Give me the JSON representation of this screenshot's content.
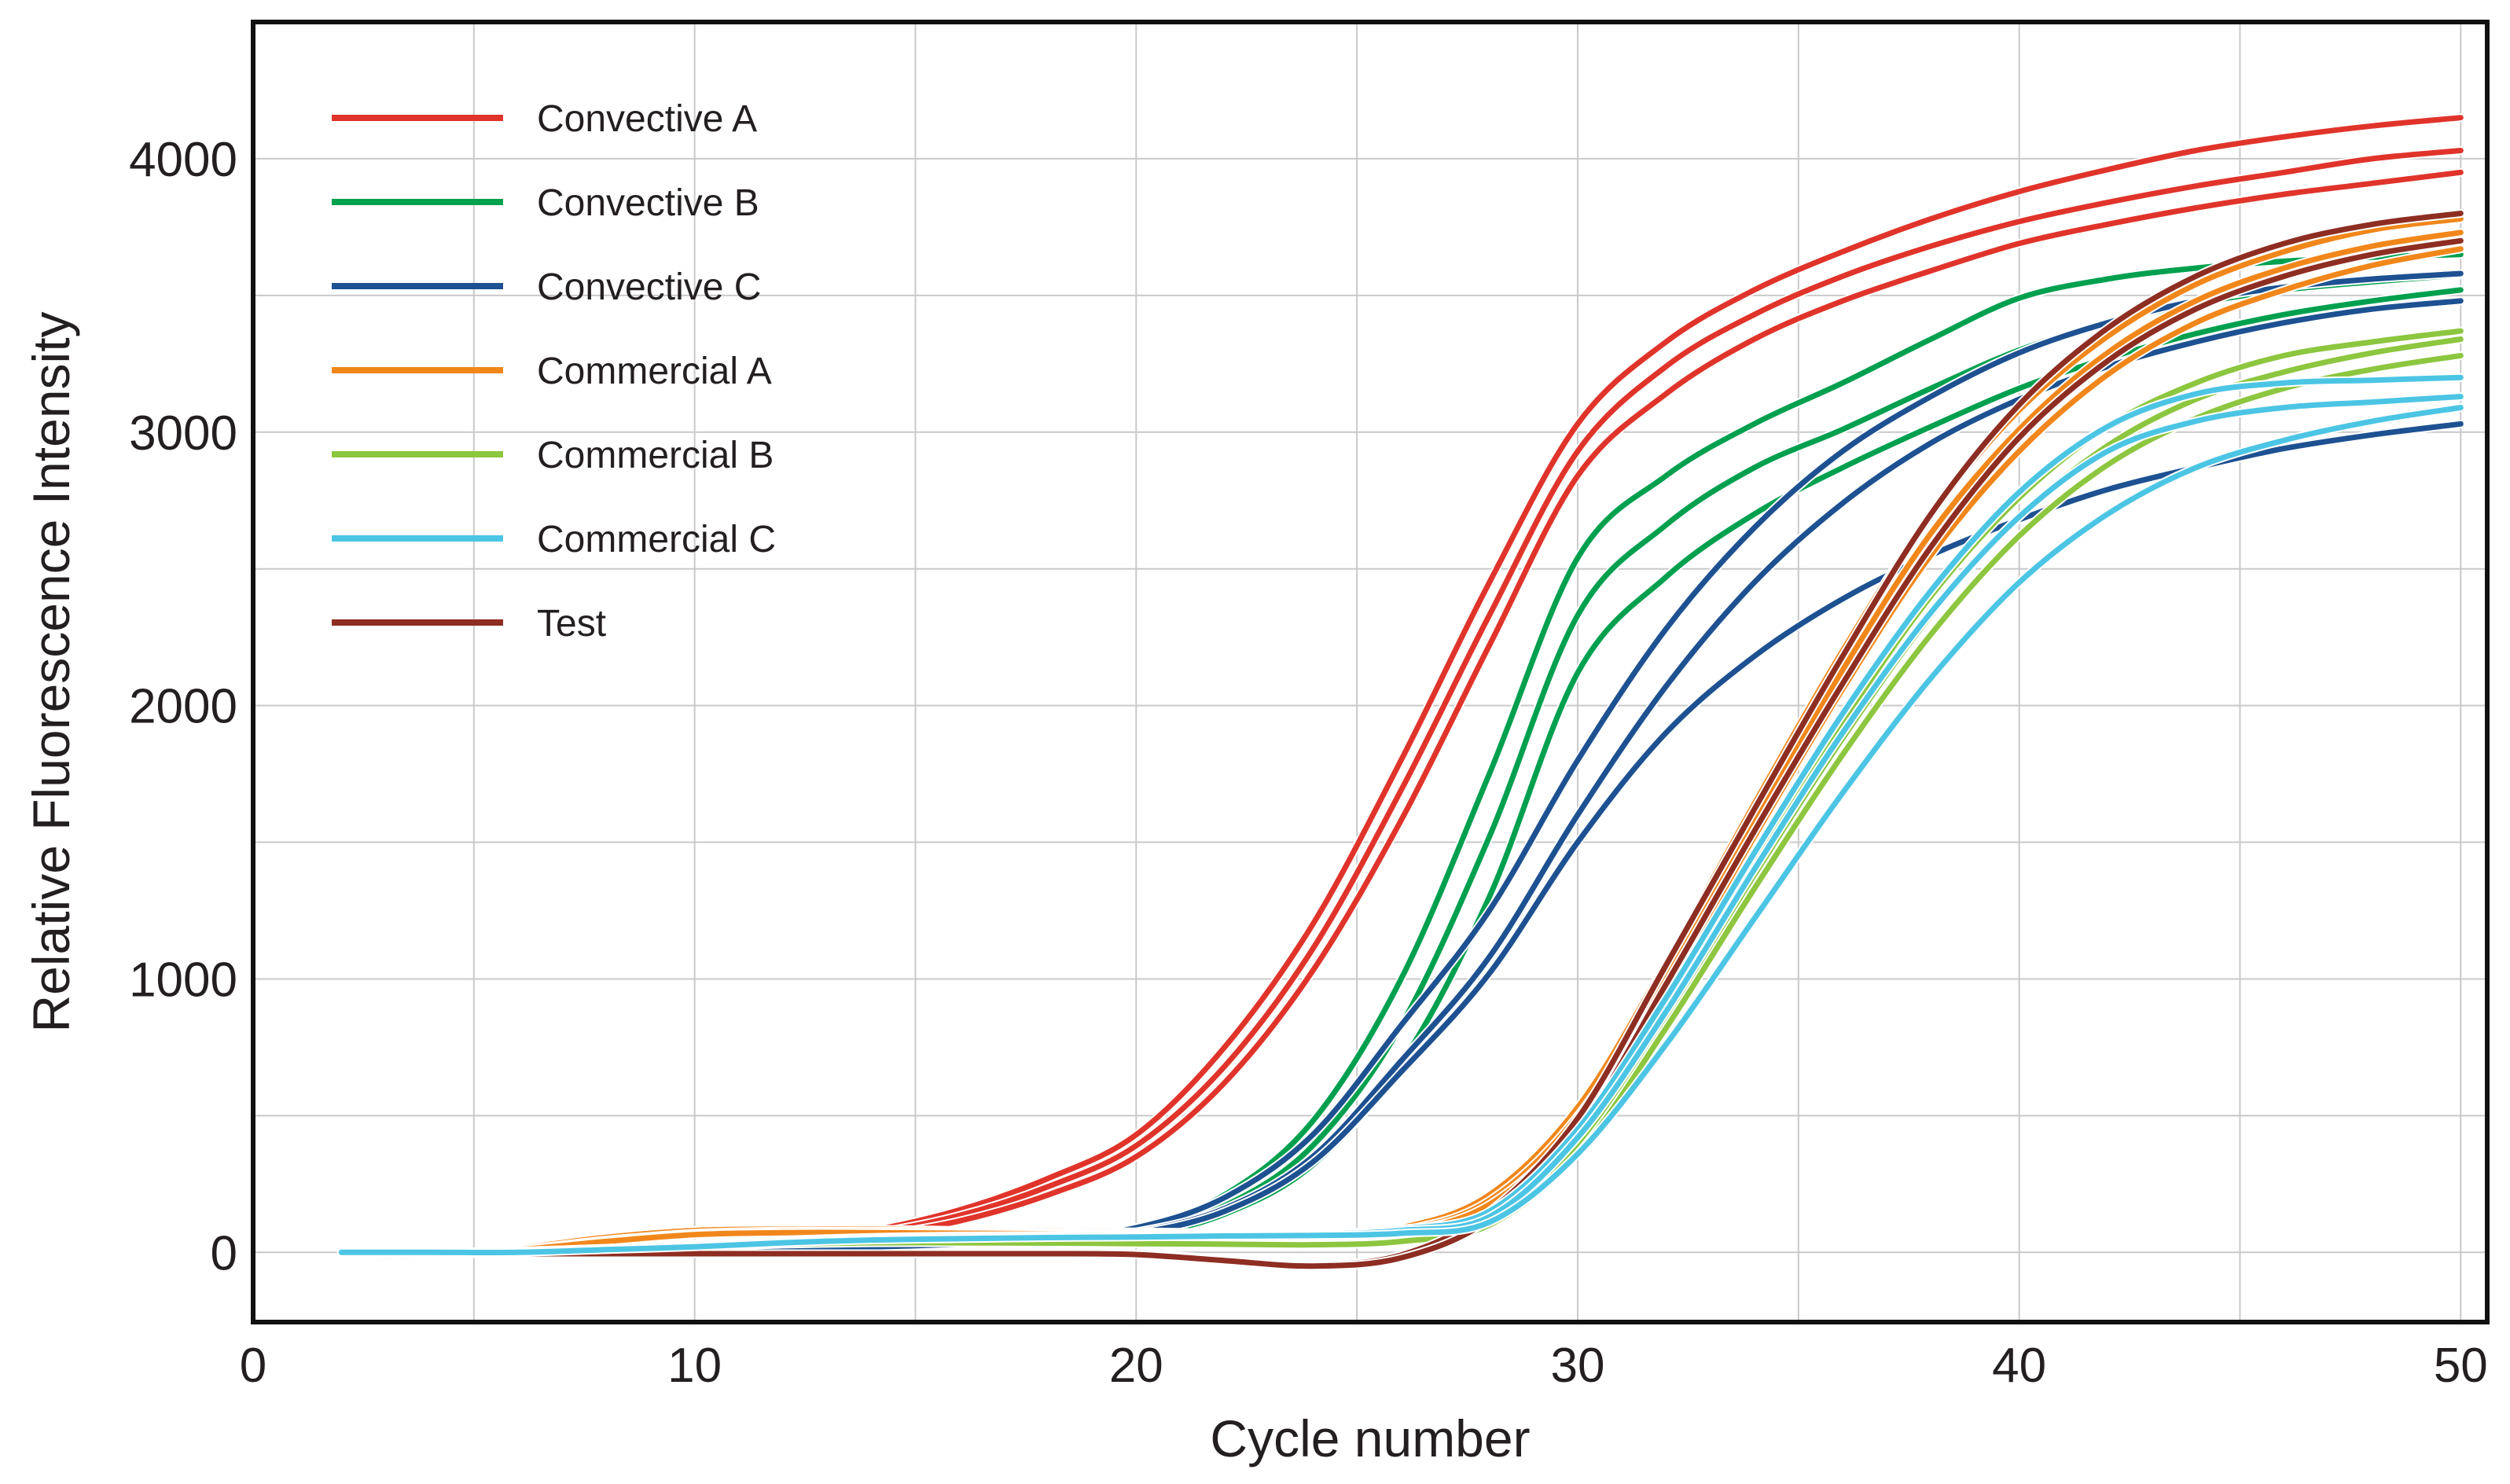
{
  "figure": {
    "background": "#ffffff",
    "text_color": "#231f20",
    "grid_color": "#c9c9c9",
    "frame_color": "#111111"
  },
  "chart_data": {
    "type": "line",
    "title": "",
    "xlabel": "Cycle number",
    "ylabel": "Relative Fluorescence Intensity",
    "xlim": [
      0,
      50.6
    ],
    "ylim": [
      -255,
      4500
    ],
    "x_ticks": [
      0,
      10,
      20,
      30,
      40,
      50
    ],
    "y_ticks": [
      0,
      1000,
      2000,
      3000,
      4000
    ],
    "x_grid_step": 5,
    "y_grid_step": 500,
    "grid": "on",
    "legend_position": "inside top-left",
    "draw_order": [
      "Convective A",
      "Convective B",
      "Convective C",
      "Commercial A",
      "Commercial B",
      "Test",
      "Commercial C"
    ],
    "x": [
      2,
      4,
      6,
      8,
      10,
      12,
      14,
      16,
      18,
      20,
      22,
      24,
      26,
      28,
      30,
      32,
      34,
      36,
      38,
      40,
      42,
      44,
      46,
      48,
      50
    ],
    "series": [
      {
        "name": "Convective A",
        "color": "#e0342b",
        "curves": [
          [
            0,
            0,
            5,
            10,
            20,
            40,
            80,
            155,
            270,
            430,
            750,
            1200,
            1800,
            2450,
            3030,
            3330,
            3520,
            3660,
            3780,
            3880,
            3960,
            4030,
            4080,
            4120,
            4150
          ],
          [
            0,
            0,
            5,
            10,
            15,
            35,
            70,
            135,
            240,
            390,
            680,
            1110,
            1690,
            2330,
            2930,
            3240,
            3430,
            3570,
            3680,
            3770,
            3840,
            3900,
            3950,
            4000,
            4030
          ],
          [
            0,
            0,
            0,
            5,
            10,
            30,
            60,
            115,
            210,
            350,
            620,
            1030,
            1580,
            2220,
            2840,
            3140,
            3340,
            3480,
            3590,
            3690,
            3760,
            3820,
            3870,
            3910,
            3950
          ]
        ]
      },
      {
        "name": "Convective B",
        "color": "#00a04f",
        "curves": [
          [
            0,
            0,
            5,
            10,
            25,
            35,
            40,
            45,
            60,
            90,
            210,
            480,
            1000,
            1750,
            2540,
            2840,
            3030,
            3180,
            3340,
            3490,
            3560,
            3600,
            3625,
            3640,
            3650
          ],
          [
            0,
            0,
            5,
            10,
            20,
            30,
            35,
            40,
            50,
            75,
            170,
            390,
            830,
            1520,
            2330,
            2660,
            2870,
            3010,
            3160,
            3300,
            3400,
            3470,
            3520,
            3550,
            3575
          ],
          [
            0,
            0,
            0,
            5,
            15,
            25,
            30,
            35,
            45,
            60,
            140,
            320,
            690,
            1300,
            2120,
            2470,
            2700,
            2870,
            3020,
            3160,
            3270,
            3360,
            3430,
            3480,
            3520
          ]
        ]
      },
      {
        "name": "Convective C",
        "color": "#1d5191",
        "curves": [
          [
            0,
            0,
            5,
            5,
            10,
            15,
            25,
            35,
            55,
            90,
            200,
            430,
            830,
            1250,
            1800,
            2280,
            2650,
            2930,
            3130,
            3290,
            3400,
            3480,
            3530,
            3560,
            3580
          ],
          [
            0,
            0,
            0,
            5,
            10,
            15,
            20,
            30,
            45,
            75,
            160,
            350,
            700,
            1080,
            1600,
            2070,
            2450,
            2740,
            2960,
            3120,
            3240,
            3330,
            3400,
            3450,
            3480
          ],
          [
            0,
            0,
            0,
            5,
            10,
            15,
            20,
            30,
            45,
            70,
            150,
            330,
            660,
            1020,
            1500,
            1900,
            2180,
            2390,
            2550,
            2680,
            2790,
            2870,
            2940,
            2990,
            3030
          ]
        ]
      },
      {
        "name": "Commercial A",
        "color": "#f1871b",
        "curves": [
          [
            -15,
            -10,
            15,
            55,
            80,
            85,
            85,
            80,
            78,
            75,
            72,
            68,
            90,
            210,
            530,
            1060,
            1640,
            2200,
            2700,
            3080,
            3350,
            3540,
            3660,
            3740,
            3780
          ],
          [
            -10,
            -5,
            10,
            45,
            70,
            78,
            78,
            75,
            72,
            70,
            68,
            62,
            80,
            190,
            500,
            1010,
            1580,
            2130,
            2630,
            3010,
            3290,
            3480,
            3600,
            3680,
            3730
          ],
          [
            -10,
            -5,
            10,
            40,
            65,
            72,
            72,
            70,
            68,
            65,
            62,
            58,
            75,
            175,
            470,
            960,
            1520,
            2060,
            2550,
            2930,
            3210,
            3400,
            3520,
            3610,
            3670
          ]
        ]
      },
      {
        "name": "Commercial B",
        "color": "#8dc63f",
        "curves": [
          [
            0,
            0,
            5,
            15,
            30,
            40,
            45,
            45,
            42,
            40,
            38,
            36,
            50,
            120,
            420,
            900,
            1430,
            1940,
            2400,
            2760,
            3020,
            3180,
            3280,
            3330,
            3370
          ],
          [
            0,
            0,
            5,
            10,
            25,
            35,
            40,
            40,
            38,
            36,
            34,
            32,
            45,
            110,
            390,
            860,
            1380,
            1880,
            2330,
            2690,
            2950,
            3120,
            3220,
            3290,
            3340
          ],
          [
            0,
            0,
            0,
            10,
            20,
            30,
            35,
            35,
            34,
            32,
            30,
            28,
            40,
            100,
            360,
            820,
            1330,
            1820,
            2260,
            2620,
            2880,
            3050,
            3160,
            3230,
            3280
          ]
        ]
      },
      {
        "name": "Commercial C",
        "color": "#4cc5e4",
        "curves": [
          [
            0,
            0,
            5,
            15,
            30,
            45,
            55,
            60,
            62,
            65,
            68,
            70,
            85,
            150,
            450,
            930,
            1460,
            1970,
            2420,
            2780,
            3020,
            3140,
            3180,
            3190,
            3200
          ],
          [
            0,
            0,
            5,
            10,
            25,
            40,
            50,
            55,
            58,
            60,
            64,
            66,
            80,
            130,
            420,
            880,
            1400,
            1900,
            2340,
            2690,
            2930,
            3040,
            3090,
            3110,
            3130
          ],
          [
            0,
            0,
            0,
            10,
            20,
            35,
            45,
            50,
            54,
            56,
            60,
            62,
            70,
            110,
            360,
            760,
            1220,
            1680,
            2100,
            2450,
            2700,
            2870,
            2970,
            3040,
            3090
          ]
        ]
      },
      {
        "name": "Test",
        "color": "#8e2d22",
        "curves": [
          [
            -5,
            -5,
            -5,
            -5,
            -5,
            -5,
            -5,
            -5,
            -5,
            -5,
            -25,
            -45,
            -10,
            150,
            490,
            1050,
            1620,
            2180,
            2700,
            3100,
            3380,
            3570,
            3690,
            3760,
            3800
          ],
          [
            -5,
            -5,
            -5,
            -5,
            -5,
            -5,
            -5,
            -5,
            -5,
            -8,
            -30,
            -50,
            -20,
            120,
            440,
            980,
            1540,
            2080,
            2580,
            2980,
            3260,
            3450,
            3570,
            3650,
            3700
          ]
        ]
      }
    ]
  }
}
